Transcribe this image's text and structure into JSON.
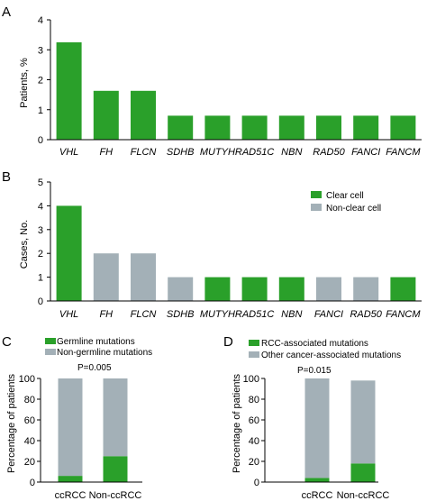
{
  "colors": {
    "green": "#2aa02a",
    "gray": "#a3b0b7",
    "axis": "#000000"
  },
  "chart_data": [
    {
      "id": "A",
      "type": "bar",
      "panel_label": "A",
      "ylabel": "Patients, %",
      "ylim": [
        0,
        4
      ],
      "yticks": [
        "0",
        "1",
        "2",
        "3",
        "4"
      ],
      "categories": [
        "VHL",
        "FH",
        "FLCN",
        "SDHB",
        "MUTYH",
        "RAD51C",
        "NBN",
        "RAD50",
        "FANCI",
        "FANCM"
      ],
      "values": [
        3.25,
        1.63,
        1.63,
        0.8,
        0.8,
        0.8,
        0.8,
        0.8,
        0.8,
        0.8
      ]
    },
    {
      "id": "B",
      "type": "bar",
      "panel_label": "B",
      "ylabel": "Cases, No.",
      "ylim": [
        0,
        5
      ],
      "yticks": [
        "0",
        "1",
        "2",
        "3",
        "4",
        "5"
      ],
      "categories": [
        "VHL",
        "FH",
        "FLCN",
        "SDHB",
        "MUTYH",
        "RAD51C",
        "NBN",
        "FANCI",
        "RAD50",
        "FANCM"
      ],
      "values": [
        4,
        2,
        2,
        1,
        1,
        1,
        1,
        1,
        1,
        1
      ],
      "bar_groups": [
        "clear",
        "nonclear",
        "nonclear",
        "nonclear",
        "clear",
        "clear",
        "clear",
        "nonclear",
        "nonclear",
        "clear"
      ],
      "legend": [
        {
          "key": "clear",
          "label": "Clear cell"
        },
        {
          "key": "nonclear",
          "label": "Non-clear cell"
        }
      ],
      "legend_position": "top-right"
    },
    {
      "id": "C",
      "type": "bar",
      "stacked": true,
      "panel_label": "C",
      "ylabel": "Percentage of patients",
      "ylim": [
        0,
        100
      ],
      "yticks": [
        "0",
        "20",
        "40",
        "60",
        "80",
        "100"
      ],
      "categories": [
        "ccRCC",
        "Non-ccRCC"
      ],
      "series": [
        {
          "name": "Germline mutations",
          "values": [
            6,
            25
          ]
        },
        {
          "name": "Non-germline mutations",
          "values": [
            94,
            75
          ]
        }
      ],
      "annotation": "P=0.005",
      "legend_position": "top-left"
    },
    {
      "id": "D",
      "type": "bar",
      "stacked": true,
      "panel_label": "D",
      "ylabel": "Percentage of patients",
      "ylim": [
        0,
        100
      ],
      "yticks": [
        "0",
        "20",
        "40",
        "60",
        "80",
        "100"
      ],
      "categories": [
        "ccRCC",
        "Non-ccRCC"
      ],
      "series": [
        {
          "name": "RCC-associated mutations",
          "values": [
            4,
            18
          ]
        },
        {
          "name": "Other cancer-associated mutations",
          "values": [
            96,
            80
          ]
        }
      ],
      "annotation": "P=0.015",
      "legend_position": "top-left"
    }
  ]
}
